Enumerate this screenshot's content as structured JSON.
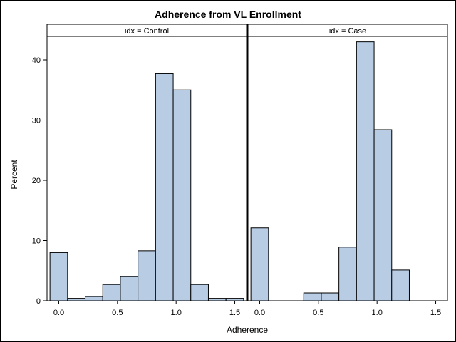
{
  "chart_data": {
    "type": "bar",
    "title": "Adherence from VL Enrollment",
    "xlabel": "Adherence",
    "ylabel": "Percent",
    "ylim": [
      0,
      45.5
    ],
    "xlim": [
      -0.1,
      1.6
    ],
    "bin_width": 0.15,
    "bin_start": -0.075,
    "x_ticks": [
      "0.0",
      "0.5",
      "1.0",
      "1.5"
    ],
    "y_ticks": [
      "0",
      "10",
      "20",
      "30",
      "40"
    ],
    "panels": [
      {
        "header": "idx = Control",
        "bins": [
          0.0,
          0.15,
          0.3,
          0.45,
          0.6,
          0.75,
          0.9,
          1.05,
          1.2,
          1.35,
          1.5
        ],
        "values": [
          8.0,
          0.4,
          0.7,
          2.7,
          4.0,
          8.3,
          37.7,
          35.0,
          2.7,
          0.4,
          0.4
        ]
      },
      {
        "header": "idx = Case",
        "bins": [
          0.0,
          0.15,
          0.3,
          0.45,
          0.6,
          0.75,
          0.9,
          1.05,
          1.2,
          1.35,
          1.5
        ],
        "values": [
          12.1,
          0,
          0,
          1.3,
          1.3,
          8.9,
          43.0,
          28.4,
          5.1,
          0,
          0
        ]
      }
    ],
    "bar_color": "#b8cce4",
    "grid": false
  }
}
